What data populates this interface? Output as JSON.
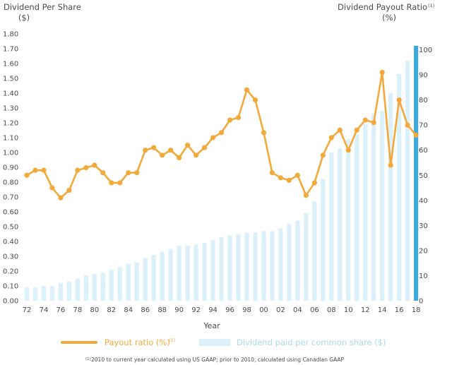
{
  "colors": {
    "bar": "#dcf0f9",
    "bar_highlight": "#3fa9dc",
    "line": "#f2a93b",
    "text": "#4a4a4a",
    "legend_bar_text": "#a9d9ef"
  },
  "titles": {
    "left_title": "Dividend Per Share",
    "left_unit": "($)",
    "right_title": "Dividend Payout Ratio",
    "right_title_sup": "(1)",
    "right_unit": "(%)",
    "x_axis": "Year"
  },
  "legend": {
    "line_label": "Payout ratio (%)",
    "line_sup": "(1)",
    "bar_label": "Dividend paid per common share ($)"
  },
  "footnote": {
    "sup": "(1)",
    "text": "2010 to current year calculated using US GAAP; prior to 2010, calculated using Canadian GAAP"
  },
  "chart_data": {
    "type": "bar+line",
    "categories": [
      "1972",
      "1973",
      "1974",
      "1975",
      "1976",
      "1977",
      "1978",
      "1979",
      "1980",
      "1981",
      "1982",
      "1983",
      "1984",
      "1985",
      "1986",
      "1987",
      "1988",
      "1989",
      "1990",
      "1991",
      "1992",
      "1993",
      "1994",
      "1995",
      "1996",
      "1997",
      "1998",
      "1999",
      "2000",
      "2001",
      "2002",
      "2003",
      "2004",
      "2005",
      "2006",
      "2007",
      "2008",
      "2009",
      "2010",
      "2011",
      "2012",
      "2013",
      "2014",
      "2015",
      "2016",
      "2017",
      "2018"
    ],
    "x_tick_labels": [
      "72",
      "74",
      "76",
      "78",
      "80",
      "82",
      "84",
      "86",
      "88",
      "90",
      "92",
      "94",
      "96",
      "98",
      "00",
      "02",
      "04",
      "06",
      "08",
      "10",
      "12",
      "14",
      "16",
      "18"
    ],
    "series": [
      {
        "name": "Dividend paid per common share ($)",
        "axis": "left",
        "type": "bar",
        "values": [
          0.09,
          0.09,
          0.1,
          0.1,
          0.12,
          0.13,
          0.15,
          0.17,
          0.18,
          0.19,
          0.21,
          0.23,
          0.25,
          0.26,
          0.29,
          0.31,
          0.33,
          0.35,
          0.37,
          0.37,
          0.38,
          0.39,
          0.41,
          0.43,
          0.44,
          0.45,
          0.46,
          0.46,
          0.47,
          0.47,
          0.49,
          0.52,
          0.54,
          0.59,
          0.67,
          0.82,
          1.0,
          1.03,
          1.09,
          1.12,
          1.19,
          1.26,
          1.28,
          1.4,
          1.53,
          1.62,
          1.72
        ]
      },
      {
        "name": "Payout ratio (%)",
        "axis": "right",
        "type": "line",
        "values": [
          50,
          52,
          52,
          45,
          41,
          44,
          52,
          53,
          54,
          51,
          47,
          47,
          51,
          51,
          60,
          61,
          58,
          60,
          57,
          62,
          58,
          61,
          65,
          67,
          72,
          73,
          84,
          80,
          67,
          51,
          49,
          48,
          50,
          42,
          47,
          58,
          65,
          68,
          60,
          68,
          72,
          71,
          91,
          54,
          80,
          70,
          66
        ]
      }
    ],
    "left_axis": {
      "ylim": [
        0,
        1.8
      ],
      "ticks": [
        "0.00",
        "0.10",
        "0.20",
        "0.30",
        "0.40",
        "0.50",
        "0.60",
        "0.70",
        "0.80",
        "0.90",
        "1.00",
        "1.10",
        "1.20",
        "1.30",
        "1.40",
        "1.50",
        "1.60",
        "1.70",
        "1.80"
      ]
    },
    "right_axis": {
      "ylim": [
        0,
        100
      ],
      "ticks": [
        "0",
        "10",
        "20",
        "30",
        "40",
        "50",
        "60",
        "70",
        "80",
        "90",
        "100"
      ]
    },
    "highlight_category": "2018",
    "legend_position": "bottom",
    "grid": false
  }
}
